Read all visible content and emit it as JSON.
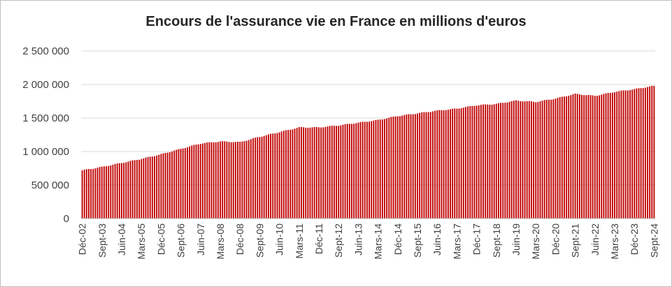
{
  "chart_data": {
    "type": "bar",
    "title": "Encours de l'assurance vie en France en millions d'euros",
    "xlabel": "",
    "ylabel": "",
    "ylim": [
      0,
      2500000
    ],
    "yticks": [
      "0",
      "500 000",
      "1 000 000",
      "1 500 000",
      "2 000 000",
      "2 500 000"
    ],
    "ytick_values": [
      0,
      500000,
      1000000,
      1500000,
      2000000,
      2500000
    ],
    "grid": true,
    "bar_color": "#c00000",
    "x_tick_labels": [
      "Déc-02",
      "Sept-03",
      "Juin-04",
      "Mars-05",
      "Déc-05",
      "Sept-06",
      "Juin-07",
      "Mars-08",
      "Déc-08",
      "Sept-09",
      "Juin-10",
      "Mars-11",
      "Déc-11",
      "Sept-12",
      "Juin-13",
      "Mars-14",
      "Déc-14",
      "Sept-15",
      "Juin-16",
      "Mars-17",
      "Déc-17",
      "Sept-18",
      "Juin-19",
      "Mars-20",
      "Déc-20",
      "Sept-21",
      "Juin-22",
      "Mars-23",
      "Déc-23",
      "Sept-24"
    ],
    "series": [
      {
        "frequency": "monthly",
        "start": "Déc-02",
        "end": "Sept-24",
        "anchors": [
          {
            "label": "Déc-02",
            "value": 720000
          },
          {
            "label": "Sept-03",
            "value": 770000
          },
          {
            "label": "Juin-04",
            "value": 830000
          },
          {
            "label": "Mars-05",
            "value": 890000
          },
          {
            "label": "Déc-05",
            "value": 960000
          },
          {
            "label": "Sept-06",
            "value": 1040000
          },
          {
            "label": "Juin-07",
            "value": 1120000
          },
          {
            "label": "Mars-08",
            "value": 1150000
          },
          {
            "label": "Déc-08",
            "value": 1140000
          },
          {
            "label": "Sept-09",
            "value": 1220000
          },
          {
            "label": "Juin-10",
            "value": 1290000
          },
          {
            "label": "Mars-11",
            "value": 1360000
          },
          {
            "label": "Déc-11",
            "value": 1360000
          },
          {
            "label": "Sept-12",
            "value": 1390000
          },
          {
            "label": "Juin-13",
            "value": 1430000
          },
          {
            "label": "Mars-14",
            "value": 1470000
          },
          {
            "label": "Déc-14",
            "value": 1530000
          },
          {
            "label": "Sept-15",
            "value": 1570000
          },
          {
            "label": "Juin-16",
            "value": 1610000
          },
          {
            "label": "Mars-17",
            "value": 1640000
          },
          {
            "label": "Déc-17",
            "value": 1690000
          },
          {
            "label": "Sept-18",
            "value": 1710000
          },
          {
            "label": "Juin-19",
            "value": 1760000
          },
          {
            "label": "Mars-20",
            "value": 1740000
          },
          {
            "label": "Déc-20",
            "value": 1790000
          },
          {
            "label": "Sept-21",
            "value": 1860000
          },
          {
            "label": "Juin-22",
            "value": 1830000
          },
          {
            "label": "Mars-23",
            "value": 1890000
          },
          {
            "label": "Déc-23",
            "value": 1930000
          },
          {
            "label": "Sept-24",
            "value": 1980000
          }
        ]
      }
    ]
  }
}
